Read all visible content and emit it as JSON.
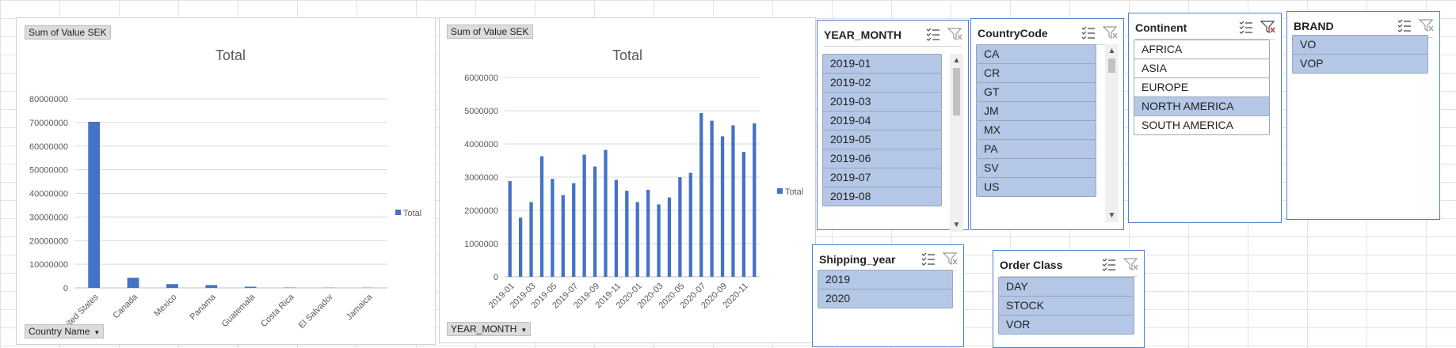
{
  "chart_data": [
    {
      "type": "bar",
      "title": "Total",
      "field_label": "Sum of Value SEK",
      "axis_field": "Country Name",
      "categories": [
        "United States",
        "Canada",
        "Mexico",
        "Panama",
        "Guatemala",
        "Costa Rica",
        "El Salvador",
        "Jamaica"
      ],
      "series": [
        {
          "name": "Total",
          "values": [
            70300000,
            4300000,
            1600000,
            1200000,
            500000,
            150000,
            100000,
            80000
          ]
        }
      ],
      "ylim": [
        0,
        80000000
      ],
      "yticks": [
        "0",
        "10000000",
        "20000000",
        "30000000",
        "40000000",
        "50000000",
        "60000000",
        "70000000",
        "80000000"
      ],
      "grid": true,
      "legend": "right",
      "color": "#4472c4"
    },
    {
      "type": "bar",
      "title": "Total",
      "field_label": "Sum of Value SEK",
      "axis_field": "YEAR_MONTH",
      "categories": [
        "2019-01",
        "2019-02",
        "2019-03",
        "2019-04",
        "2019-05",
        "2019-06",
        "2019-07",
        "2019-08",
        "2019-09",
        "2019-10",
        "2019-11",
        "2019-12",
        "2020-01",
        "2020-02",
        "2020-03",
        "2020-04",
        "2020-05",
        "2020-06",
        "2020-07",
        "2020-08",
        "2020-09",
        "2020-10",
        "2020-11",
        "2020-12"
      ],
      "tick_labels": [
        "2019-01",
        "",
        "2019-03",
        "",
        "2019-05",
        "",
        "2019-07",
        "",
        "2019-09",
        "",
        "2019-11",
        "",
        "2020-01",
        "",
        "2020-03",
        "",
        "2020-05",
        "",
        "2020-07",
        "",
        "2020-09",
        "",
        "2020-11",
        ""
      ],
      "series": [
        {
          "name": "Total",
          "values": [
            2880000,
            1780000,
            2250000,
            3630000,
            2950000,
            2460000,
            2820000,
            3680000,
            3320000,
            3820000,
            2920000,
            2590000,
            2250000,
            2620000,
            2180000,
            2390000,
            3000000,
            3130000,
            4930000,
            4700000,
            4230000,
            4560000,
            3760000,
            4620000
          ]
        }
      ],
      "ylim": [
        0,
        6000000
      ],
      "yticks": [
        "0",
        "1000000",
        "2000000",
        "3000000",
        "4000000",
        "5000000",
        "6000000"
      ],
      "grid": true,
      "legend": "right",
      "color": "#4472c4"
    }
  ],
  "slicers": {
    "year_month": {
      "title": "YEAR_MONTH",
      "items": [
        {
          "label": "2019-01",
          "selected": true
        },
        {
          "label": "2019-02",
          "selected": true
        },
        {
          "label": "2019-03",
          "selected": true
        },
        {
          "label": "2019-04",
          "selected": true
        },
        {
          "label": "2019-05",
          "selected": true
        },
        {
          "label": "2019-06",
          "selected": true
        },
        {
          "label": "2019-07",
          "selected": true
        },
        {
          "label": "2019-08",
          "selected": true
        }
      ]
    },
    "country_code": {
      "title": "CountryCode",
      "items": [
        {
          "label": "CA",
          "selected": true
        },
        {
          "label": "CR",
          "selected": true
        },
        {
          "label": "GT",
          "selected": true
        },
        {
          "label": "JM",
          "selected": true
        },
        {
          "label": "MX",
          "selected": true
        },
        {
          "label": "PA",
          "selected": true
        },
        {
          "label": "SV",
          "selected": true
        },
        {
          "label": "US",
          "selected": true
        }
      ]
    },
    "continent": {
      "title": "Continent",
      "items": [
        {
          "label": "AFRICA",
          "selected": false
        },
        {
          "label": "ASIA",
          "selected": false
        },
        {
          "label": "EUROPE",
          "selected": false
        },
        {
          "label": "NORTH AMERICA",
          "selected": true
        },
        {
          "label": "SOUTH AMERICA",
          "selected": false
        }
      ]
    },
    "brand": {
      "title": "BRAND",
      "items": [
        {
          "label": "VO",
          "selected": true
        },
        {
          "label": "VOP",
          "selected": true
        }
      ]
    },
    "shipping_year": {
      "title": "Shipping_year",
      "items": [
        {
          "label": "2019",
          "selected": true
        },
        {
          "label": "2020",
          "selected": true
        }
      ]
    },
    "order_class": {
      "title": "Order Class",
      "items": [
        {
          "label": "DAY",
          "selected": true
        },
        {
          "label": "STOCK",
          "selected": true
        },
        {
          "label": "VOR",
          "selected": true
        }
      ]
    }
  },
  "colors": {
    "selected_item": "#b4c7e7",
    "slicer_border": "#4f7fd0",
    "clear_filter_active": "#e03030"
  }
}
